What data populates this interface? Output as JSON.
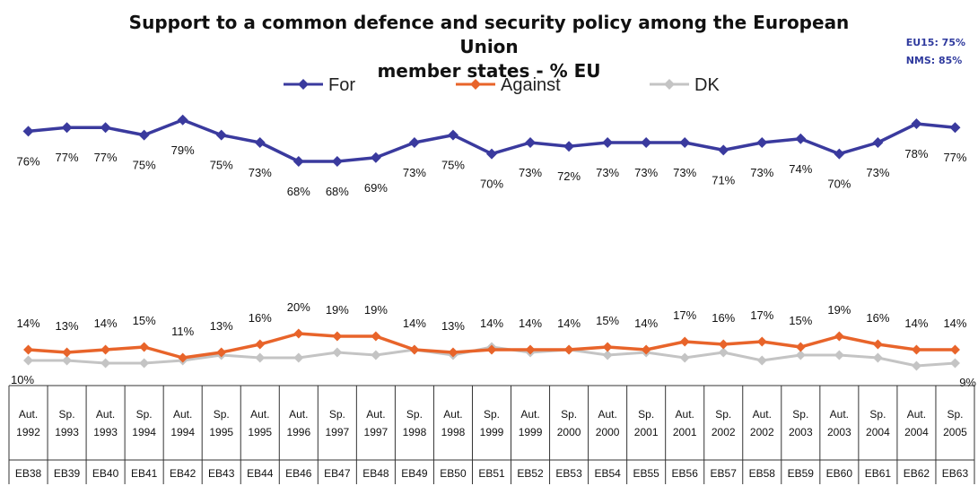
{
  "title_line1": "Support to a common defence and security policy among the European Union",
  "title_line2": "member states - % EU",
  "side_note": {
    "eu15": "EU15: 75%",
    "nms": "NMS: 85%"
  },
  "colors": {
    "for": "#3a3a9e",
    "against": "#e8642a",
    "dk": "#c4c4c4",
    "side_note": "#2f3a9e"
  },
  "chart_data": {
    "type": "line",
    "title": "Support to a common defence and security policy among the European Union member states - % EU",
    "legend_position": "top",
    "grid": false,
    "ylim": [
      0,
      100
    ],
    "categories": [
      {
        "period": "Aut.",
        "year": "1992",
        "code": "EB38"
      },
      {
        "period": "Sp.",
        "year": "1993",
        "code": "EB39"
      },
      {
        "period": "Aut.",
        "year": "1993",
        "code": "EB40"
      },
      {
        "period": "Sp.",
        "year": "1994",
        "code": "EB41"
      },
      {
        "period": "Aut.",
        "year": "1994",
        "code": "EB42"
      },
      {
        "period": "Sp.",
        "year": "1995",
        "code": "EB43"
      },
      {
        "period": "Aut.",
        "year": "1995",
        "code": "EB44"
      },
      {
        "period": "Aut.",
        "year": "1996",
        "code": "EB46"
      },
      {
        "period": "Sp.",
        "year": "1997",
        "code": "EB47"
      },
      {
        "period": "Aut.",
        "year": "1997",
        "code": "EB48"
      },
      {
        "period": "Sp.",
        "year": "1998",
        "code": "EB49"
      },
      {
        "period": "Aut.",
        "year": "1998",
        "code": "EB50"
      },
      {
        "period": "Sp.",
        "year": "1999",
        "code": "EB51"
      },
      {
        "period": "Aut.",
        "year": "1999",
        "code": "EB52"
      },
      {
        "period": "Sp.",
        "year": "2000",
        "code": "EB53"
      },
      {
        "period": "Aut.",
        "year": "2000",
        "code": "EB54"
      },
      {
        "period": "Sp.",
        "year": "2001",
        "code": "EB55"
      },
      {
        "period": "Aut.",
        "year": "2001",
        "code": "EB56"
      },
      {
        "period": "Sp.",
        "year": "2002",
        "code": "EB57"
      },
      {
        "period": "Aut.",
        "year": "2002",
        "code": "EB58"
      },
      {
        "period": "Sp.",
        "year": "2003",
        "code": "EB59"
      },
      {
        "period": "Aut.",
        "year": "2003",
        "code": "EB60"
      },
      {
        "period": "Sp.",
        "year": "2004",
        "code": "EB61"
      },
      {
        "period": "Aut.",
        "year": "2004",
        "code": "EB62"
      },
      {
        "period": "Sp.",
        "year": "2005",
        "code": "EB63"
      }
    ],
    "series": [
      {
        "name": "For",
        "values": [
          76,
          77,
          77,
          75,
          79,
          75,
          73,
          68,
          68,
          69,
          73,
          75,
          70,
          73,
          72,
          73,
          73,
          73,
          71,
          73,
          74,
          70,
          73,
          78,
          77
        ]
      },
      {
        "name": "Against",
        "values": [
          14,
          13,
          14,
          15,
          11,
          13,
          16,
          20,
          19,
          19,
          14,
          13,
          14,
          14,
          14,
          15,
          14,
          17,
          16,
          17,
          15,
          19,
          16,
          14,
          14
        ]
      },
      {
        "name": "DK",
        "values": [
          10,
          10,
          9,
          9,
          10,
          12,
          11,
          11,
          13,
          12,
          14,
          12,
          15,
          13,
          14,
          12,
          13,
          11,
          13,
          10,
          12,
          12,
          11,
          8,
          9
        ]
      }
    ],
    "dk_labels": [
      {
        "index": 0,
        "text": "10%"
      },
      {
        "index": 24,
        "text": "9%"
      }
    ]
  }
}
